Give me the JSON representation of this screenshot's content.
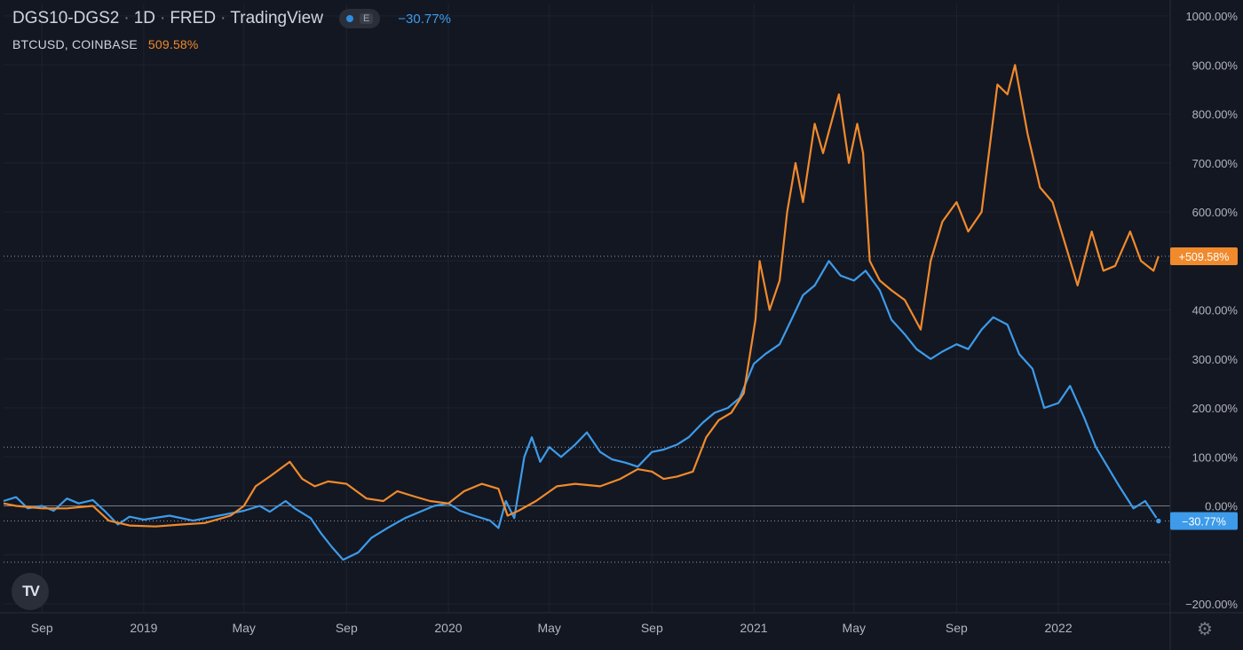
{
  "legend": {
    "symbol": "DGS10-DGS2",
    "interval": "1D",
    "source": "FRED",
    "platform": "TradingView",
    "dot": "·",
    "eye_label": "E",
    "main_value": "−30.77%",
    "second_symbol": "BTCUSD, COINBASE",
    "second_value": "509.58%"
  },
  "logo_text": "TV",
  "icons": {
    "settings": "gear-icon",
    "eye": "eye-icon",
    "logo": "tradingview-logo-icon"
  },
  "colors": {
    "background": "#131722",
    "blue": "#3d9be9",
    "orange": "#f08a2c",
    "grid": "#1e2230",
    "text": "#d1d4dc",
    "axis_text": "#b2b5be"
  },
  "chart_data": {
    "type": "line",
    "title": "DGS10-DGS2 · 1D · FRED · TradingView",
    "ylabel": "",
    "xlabel": "",
    "y_unit": "%",
    "ylim": [
      -200,
      1000
    ],
    "x_ticks": [
      "Sep",
      "2019",
      "May",
      "Sep",
      "2020",
      "May",
      "Sep",
      "2021",
      "May",
      "Sep",
      "2022"
    ],
    "x_tick_dates": [
      "2018-09-01",
      "2019-01-01",
      "2019-05-01",
      "2019-09-01",
      "2020-01-01",
      "2020-05-01",
      "2020-09-01",
      "2021-01-01",
      "2021-05-01",
      "2021-09-01",
      "2022-01-01"
    ],
    "x_range": [
      "2018-07-17",
      "2022-05-15"
    ],
    "y_ticks": [
      1000,
      900,
      800,
      700,
      600,
      500,
      400,
      300,
      200,
      100,
      0,
      -100,
      -200
    ],
    "y_tick_labels": [
      "1000.00%",
      "900.00%",
      "800.00%",
      "700.00%",
      "600.00%",
      "",
      "400.00%",
      "300.00%",
      "200.00%",
      "100.00%",
      "0.00%",
      "",
      "−200.00%"
    ],
    "horizontal_dotted_lines": [
      509.58,
      120,
      -30.77,
      -115
    ],
    "zero_line": 0,
    "grid": true,
    "series": [
      {
        "name": "DGS10-DGS2",
        "color": "#3d9be9",
        "last_label": "−30.77%",
        "points": [
          [
            "2018-07-17",
            10
          ],
          [
            "2018-08-01",
            18
          ],
          [
            "2018-08-15",
            -5
          ],
          [
            "2018-09-01",
            0
          ],
          [
            "2018-09-15",
            -10
          ],
          [
            "2018-10-01",
            15
          ],
          [
            "2018-10-15",
            5
          ],
          [
            "2018-11-01",
            12
          ],
          [
            "2018-11-15",
            -10
          ],
          [
            "2018-12-01",
            -38
          ],
          [
            "2018-12-15",
            -22
          ],
          [
            "2019-01-01",
            -28
          ],
          [
            "2019-02-01",
            -20
          ],
          [
            "2019-03-01",
            -30
          ],
          [
            "2019-04-01",
            -20
          ],
          [
            "2019-05-01",
            -10
          ],
          [
            "2019-05-20",
            0
          ],
          [
            "2019-06-01",
            -12
          ],
          [
            "2019-06-20",
            10
          ],
          [
            "2019-07-01",
            -5
          ],
          [
            "2019-07-20",
            -25
          ],
          [
            "2019-08-01",
            -55
          ],
          [
            "2019-08-15",
            -85
          ],
          [
            "2019-08-28",
            -110
          ],
          [
            "2019-09-15",
            -95
          ],
          [
            "2019-10-01",
            -65
          ],
          [
            "2019-10-20",
            -45
          ],
          [
            "2019-11-10",
            -25
          ],
          [
            "2019-12-01",
            -10
          ],
          [
            "2019-12-15",
            0
          ],
          [
            "2020-01-01",
            5
          ],
          [
            "2020-01-15",
            -10
          ],
          [
            "2020-02-01",
            -20
          ],
          [
            "2020-02-20",
            -30
          ],
          [
            "2020-03-01",
            -45
          ],
          [
            "2020-03-10",
            10
          ],
          [
            "2020-03-20",
            -25
          ],
          [
            "2020-04-01",
            100
          ],
          [
            "2020-04-10",
            140
          ],
          [
            "2020-04-20",
            90
          ],
          [
            "2020-05-01",
            120
          ],
          [
            "2020-05-15",
            100
          ],
          [
            "2020-06-01",
            125
          ],
          [
            "2020-06-15",
            150
          ],
          [
            "2020-07-01",
            110
          ],
          [
            "2020-07-15",
            95
          ],
          [
            "2020-08-01",
            88
          ],
          [
            "2020-08-15",
            80
          ],
          [
            "2020-09-01",
            110
          ],
          [
            "2020-09-15",
            115
          ],
          [
            "2020-10-01",
            125
          ],
          [
            "2020-10-15",
            140
          ],
          [
            "2020-11-01",
            170
          ],
          [
            "2020-11-15",
            190
          ],
          [
            "2020-12-01",
            200
          ],
          [
            "2020-12-15",
            220
          ],
          [
            "2021-01-01",
            290
          ],
          [
            "2021-01-15",
            310
          ],
          [
            "2021-02-01",
            330
          ],
          [
            "2021-02-15",
            380
          ],
          [
            "2021-03-01",
            430
          ],
          [
            "2021-03-15",
            450
          ],
          [
            "2021-04-01",
            500
          ],
          [
            "2021-04-15",
            470
          ],
          [
            "2021-05-01",
            460
          ],
          [
            "2021-05-15",
            480
          ],
          [
            "2021-06-01",
            440
          ],
          [
            "2021-06-15",
            380
          ],
          [
            "2021-07-01",
            350
          ],
          [
            "2021-07-15",
            320
          ],
          [
            "2021-08-01",
            300
          ],
          [
            "2021-08-15",
            315
          ],
          [
            "2021-09-01",
            330
          ],
          [
            "2021-09-15",
            320
          ],
          [
            "2021-10-01",
            360
          ],
          [
            "2021-10-15",
            385
          ],
          [
            "2021-11-01",
            370
          ],
          [
            "2021-11-15",
            310
          ],
          [
            "2021-12-01",
            280
          ],
          [
            "2021-12-15",
            200
          ],
          [
            "2022-01-01",
            210
          ],
          [
            "2022-01-15",
            245
          ],
          [
            "2022-02-01",
            180
          ],
          [
            "2022-02-15",
            120
          ],
          [
            "2022-03-01",
            80
          ],
          [
            "2022-03-15",
            40
          ],
          [
            "2022-04-01",
            -5
          ],
          [
            "2022-04-15",
            10
          ],
          [
            "2022-05-01",
            -30.77
          ]
        ]
      },
      {
        "name": "BTCUSD, COINBASE",
        "color": "#f08a2c",
        "last_label": "+509.58%",
        "points": [
          [
            "2018-07-17",
            5
          ],
          [
            "2018-08-01",
            0
          ],
          [
            "2018-09-01",
            -5
          ],
          [
            "2018-10-01",
            -5
          ],
          [
            "2018-11-01",
            0
          ],
          [
            "2018-11-20",
            -30
          ],
          [
            "2018-12-15",
            -40
          ],
          [
            "2019-01-15",
            -42
          ],
          [
            "2019-02-15",
            -38
          ],
          [
            "2019-03-15",
            -35
          ],
          [
            "2019-04-15",
            -20
          ],
          [
            "2019-05-01",
            0
          ],
          [
            "2019-05-15",
            40
          ],
          [
            "2019-06-01",
            60
          ],
          [
            "2019-06-25",
            90
          ],
          [
            "2019-07-10",
            55
          ],
          [
            "2019-07-25",
            40
          ],
          [
            "2019-08-10",
            50
          ],
          [
            "2019-09-01",
            45
          ],
          [
            "2019-09-25",
            15
          ],
          [
            "2019-10-15",
            10
          ],
          [
            "2019-11-01",
            30
          ],
          [
            "2019-11-20",
            20
          ],
          [
            "2019-12-10",
            10
          ],
          [
            "2020-01-01",
            5
          ],
          [
            "2020-01-20",
            30
          ],
          [
            "2020-02-10",
            45
          ],
          [
            "2020-03-01",
            35
          ],
          [
            "2020-03-12",
            -20
          ],
          [
            "2020-03-25",
            -10
          ],
          [
            "2020-04-15",
            10
          ],
          [
            "2020-05-10",
            40
          ],
          [
            "2020-06-01",
            45
          ],
          [
            "2020-07-01",
            40
          ],
          [
            "2020-07-25",
            55
          ],
          [
            "2020-08-15",
            75
          ],
          [
            "2020-09-01",
            70
          ],
          [
            "2020-09-15",
            55
          ],
          [
            "2020-10-01",
            60
          ],
          [
            "2020-10-20",
            70
          ],
          [
            "2020-11-05",
            140
          ],
          [
            "2020-11-20",
            175
          ],
          [
            "2020-12-05",
            190
          ],
          [
            "2020-12-20",
            230
          ],
          [
            "2021-01-03",
            380
          ],
          [
            "2021-01-08",
            500
          ],
          [
            "2021-01-20",
            400
          ],
          [
            "2021-02-01",
            460
          ],
          [
            "2021-02-10",
            600
          ],
          [
            "2021-02-20",
            700
          ],
          [
            "2021-03-01",
            620
          ],
          [
            "2021-03-15",
            780
          ],
          [
            "2021-03-25",
            720
          ],
          [
            "2021-04-13",
            840
          ],
          [
            "2021-04-25",
            700
          ],
          [
            "2021-05-05",
            780
          ],
          [
            "2021-05-12",
            720
          ],
          [
            "2021-05-20",
            500
          ],
          [
            "2021-06-01",
            460
          ],
          [
            "2021-06-15",
            440
          ],
          [
            "2021-07-01",
            420
          ],
          [
            "2021-07-20",
            360
          ],
          [
            "2021-08-01",
            500
          ],
          [
            "2021-08-15",
            580
          ],
          [
            "2021-09-01",
            620
          ],
          [
            "2021-09-15",
            560
          ],
          [
            "2021-10-01",
            600
          ],
          [
            "2021-10-20",
            860
          ],
          [
            "2021-11-01",
            840
          ],
          [
            "2021-11-10",
            900
          ],
          [
            "2021-11-25",
            760
          ],
          [
            "2021-12-10",
            650
          ],
          [
            "2021-12-25",
            620
          ],
          [
            "2022-01-10",
            530
          ],
          [
            "2022-01-24",
            450
          ],
          [
            "2022-02-10",
            560
          ],
          [
            "2022-02-24",
            480
          ],
          [
            "2022-03-10",
            490
          ],
          [
            "2022-03-28",
            560
          ],
          [
            "2022-04-10",
            500
          ],
          [
            "2022-04-25",
            480
          ],
          [
            "2022-05-01",
            509.58
          ]
        ]
      }
    ]
  }
}
